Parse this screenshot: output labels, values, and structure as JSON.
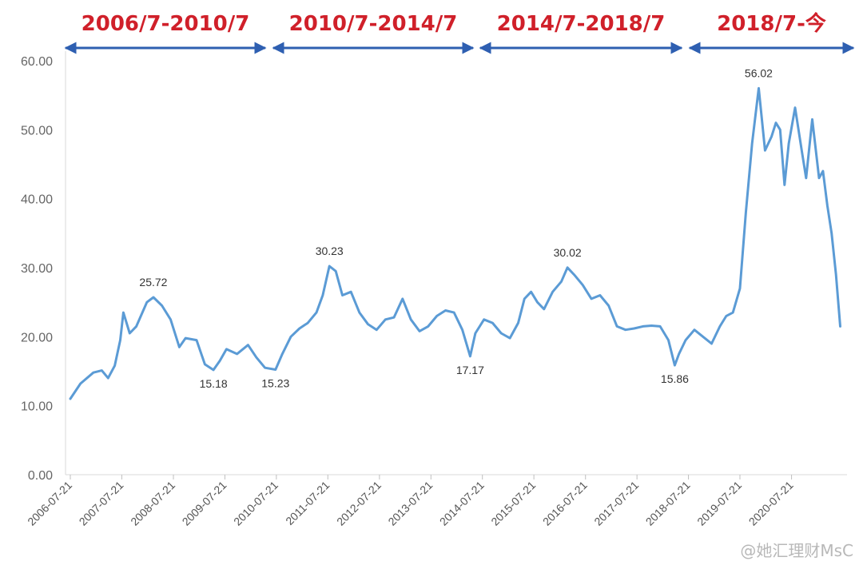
{
  "colors": {
    "line": "#5b9bd5",
    "period_text": "#d0202a",
    "period_arrow": "#2e5fb1",
    "axis": "#d9d9d9",
    "tick_text": "#666666"
  },
  "periods": [
    {
      "label": "2006/7-2010/7",
      "from": "2006-07-21",
      "to": "2010-07-21"
    },
    {
      "label": "2010/7-2014/7",
      "from": "2010-07-21",
      "to": "2014-07-21"
    },
    {
      "label": "2014/7-2018/7",
      "from": "2014-07-21",
      "to": "2018-07-21"
    },
    {
      "label": "2018/7-今",
      "from": "2018-07-21",
      "to": "2021-07-21"
    }
  ],
  "watermark": "@她汇理财MsC",
  "chart_data": {
    "type": "line",
    "title": "",
    "xlabel": "",
    "ylabel": "",
    "ylim": [
      0,
      60
    ],
    "yticks": [
      "0.00",
      "10.00",
      "20.00",
      "30.00",
      "40.00",
      "50.00",
      "60.00"
    ],
    "xticks": [
      "2006-07-21",
      "2007-07-21",
      "2008-07-21",
      "2009-07-21",
      "2010-07-21",
      "2011-07-21",
      "2012-07-21",
      "2013-07-21",
      "2014-07-21",
      "2015-07-21",
      "2016-07-21",
      "2017-07-21",
      "2018-07-21",
      "2019-07-21",
      "2020-07-21"
    ],
    "grid": false,
    "legend": "none",
    "series": [
      {
        "x": [
          "2006-07-21",
          "2006-10-01",
          "2007-01-01",
          "2007-03-01",
          "2007-04-15",
          "2007-06-01",
          "2007-07-10",
          "2007-08-01",
          "2007-09-15",
          "2007-11-01",
          "2008-01-15",
          "2008-03-01",
          "2008-05-01",
          "2008-07-01",
          "2008-09-01",
          "2008-10-15",
          "2009-01-01",
          "2009-03-01",
          "2009-05-01",
          "2009-06-15",
          "2009-08-01",
          "2009-10-15",
          "2010-01-01",
          "2010-03-01",
          "2010-05-01",
          "2010-07-15",
          "2010-09-01",
          "2010-11-01",
          "2011-01-01",
          "2011-03-01",
          "2011-05-01",
          "2011-06-15",
          "2011-08-01",
          "2011-09-15",
          "2011-11-01",
          "2012-01-01",
          "2012-03-01",
          "2012-05-01",
          "2012-07-01",
          "2012-09-01",
          "2012-11-01",
          "2013-01-01",
          "2013-03-01",
          "2013-05-01",
          "2013-07-01",
          "2013-09-01",
          "2013-11-01",
          "2014-01-01",
          "2014-03-01",
          "2014-04-25",
          "2014-06-01",
          "2014-08-01",
          "2014-10-01",
          "2014-12-01",
          "2015-02-01",
          "2015-04-01",
          "2015-05-15",
          "2015-07-01",
          "2015-08-15",
          "2015-10-01",
          "2015-12-01",
          "2016-02-01",
          "2016-03-15",
          "2016-05-01",
          "2016-07-01",
          "2016-09-01",
          "2016-11-01",
          "2017-01-01",
          "2017-03-01",
          "2017-05-01",
          "2017-07-01",
          "2017-09-01",
          "2017-11-01",
          "2018-01-01",
          "2018-03-01",
          "2018-04-15",
          "2018-05-15",
          "2018-07-01",
          "2018-09-01",
          "2018-11-01",
          "2019-01-01",
          "2019-03-01",
          "2019-04-15",
          "2019-06-01",
          "2019-07-21",
          "2019-09-01",
          "2019-10-15",
          "2019-12-01",
          "2020-01-15",
          "2020-03-01",
          "2020-04-01",
          "2020-05-01",
          "2020-06-01",
          "2020-07-01",
          "2020-08-15",
          "2020-10-01",
          "2020-11-01",
          "2020-12-15",
          "2021-02-01",
          "2021-03-01",
          "2021-04-01",
          "2021-05-01",
          "2021-06-01",
          "2021-07-01"
        ],
        "y": [
          11.0,
          13.2,
          14.8,
          15.1,
          14.0,
          15.8,
          19.5,
          23.5,
          20.5,
          21.5,
          25.0,
          25.72,
          24.5,
          22.5,
          18.5,
          19.8,
          19.5,
          16.0,
          15.18,
          16.5,
          18.2,
          17.5,
          18.8,
          17.0,
          15.5,
          15.23,
          17.5,
          20.0,
          21.2,
          22.0,
          23.5,
          26.0,
          30.23,
          29.5,
          26.0,
          26.5,
          23.5,
          21.8,
          21.0,
          22.5,
          22.8,
          25.5,
          22.5,
          20.8,
          21.5,
          23.0,
          23.8,
          23.5,
          21.0,
          17.17,
          20.5,
          22.5,
          22.0,
          20.5,
          19.8,
          22.0,
          25.5,
          26.5,
          25.0,
          24.0,
          26.5,
          28.0,
          30.02,
          29.0,
          27.5,
          25.5,
          26.0,
          24.5,
          21.5,
          21.0,
          21.2,
          21.5,
          21.6,
          21.5,
          19.5,
          15.86,
          17.5,
          19.5,
          21.0,
          20.0,
          19.0,
          21.5,
          23.0,
          23.5,
          27.0,
          38.0,
          48.0,
          56.02,
          47.0,
          49.0,
          51.0,
          50.0,
          42.0,
          48.0,
          53.2,
          47.0,
          43.0,
          51.5,
          43.0,
          44.0,
          39.0,
          35.0,
          29.0,
          21.5
        ]
      }
    ],
    "annotations": [
      {
        "text": "25.72",
        "x": "2008-03-01",
        "y": 25.72,
        "pos": "above"
      },
      {
        "text": "15.18",
        "x": "2009-05-01",
        "y": 15.18,
        "pos": "below"
      },
      {
        "text": "15.23",
        "x": "2010-07-15",
        "y": 15.23,
        "pos": "below"
      },
      {
        "text": "30.23",
        "x": "2011-08-01",
        "y": 30.23,
        "pos": "above"
      },
      {
        "text": "17.17",
        "x": "2014-04-25",
        "y": 17.17,
        "pos": "below"
      },
      {
        "text": "30.02",
        "x": "2016-03-15",
        "y": 30.02,
        "pos": "above"
      },
      {
        "text": "15.86",
        "x": "2018-04-15",
        "y": 15.86,
        "pos": "below"
      },
      {
        "text": "56.02",
        "x": "2019-12-01",
        "y": 56.02,
        "pos": "above"
      }
    ]
  }
}
